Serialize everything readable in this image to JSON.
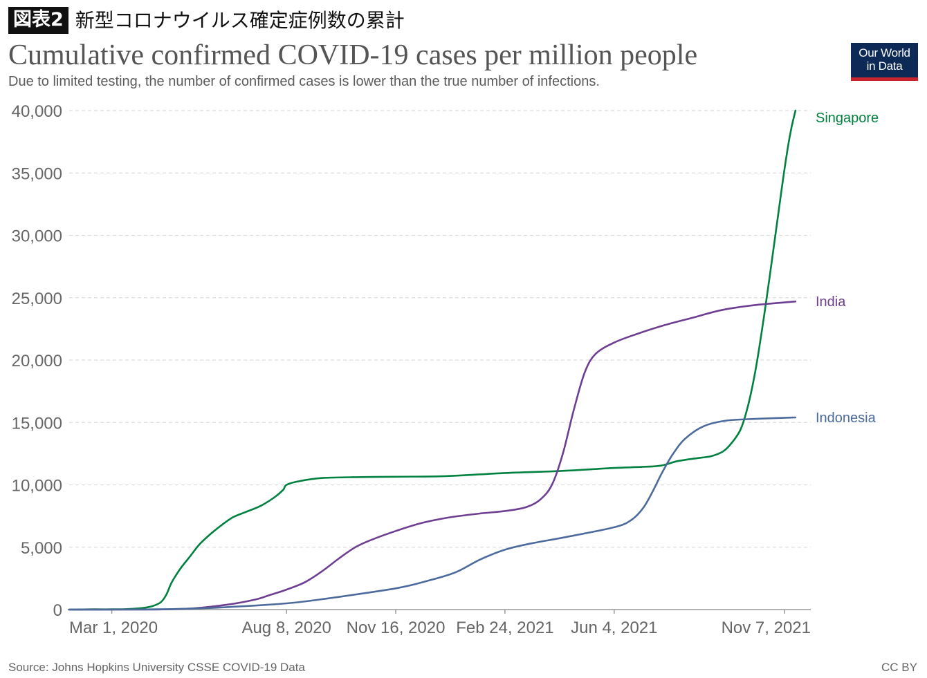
{
  "header": {
    "figure_label": "図表2",
    "figure_title": "新型コロナウイルス確定症例数の累計"
  },
  "logo": {
    "line1": "Our World",
    "line2": "in Data"
  },
  "footer": {
    "source": "Source: Johns Hopkins University CSSE COVID-19 Data",
    "license": "CC BY"
  },
  "chart_data": {
    "type": "line",
    "title": "Cumulative confirmed COVID-19 cases per million people",
    "subtitle": "Due to limited testing, the number of confirmed cases is lower than the true number of infections.",
    "xlabel": "",
    "ylabel": "",
    "x_range": [
      "2020-01-22",
      "2021-12-01"
    ],
    "ylim": [
      0,
      40000
    ],
    "y_ticks": [
      0,
      5000,
      10000,
      15000,
      20000,
      25000,
      30000,
      35000,
      40000
    ],
    "x_ticks": [
      {
        "date": "2020-03-01",
        "label": "Mar 1, 2020"
      },
      {
        "date": "2020-08-08",
        "label": "Aug 8, 2020"
      },
      {
        "date": "2020-11-16",
        "label": "Nov 16, 2020"
      },
      {
        "date": "2021-02-24",
        "label": "Feb 24, 2021"
      },
      {
        "date": "2021-06-04",
        "label": "Jun 4, 2021"
      },
      {
        "date": "2021-11-07",
        "label": "Nov 7, 2021"
      }
    ],
    "grid": "horizontal-dashed",
    "legend": "line-end labels",
    "series": [
      {
        "name": "Singapore",
        "color": "#00813f",
        "points": [
          [
            "2020-01-22",
            0
          ],
          [
            "2020-02-15",
            20
          ],
          [
            "2020-03-01",
            20
          ],
          [
            "2020-03-15",
            40
          ],
          [
            "2020-03-31",
            150
          ],
          [
            "2020-04-08",
            300
          ],
          [
            "2020-04-15",
            600
          ],
          [
            "2020-04-20",
            1200
          ],
          [
            "2020-04-25",
            2200
          ],
          [
            "2020-05-03",
            3300
          ],
          [
            "2020-05-12",
            4300
          ],
          [
            "2020-05-20",
            5200
          ],
          [
            "2020-05-31",
            6100
          ],
          [
            "2020-06-10",
            6800
          ],
          [
            "2020-06-20",
            7400
          ],
          [
            "2020-07-01",
            7800
          ],
          [
            "2020-07-15",
            8300
          ],
          [
            "2020-07-28",
            9000
          ],
          [
            "2020-08-05",
            9600
          ],
          [
            "2020-08-08",
            10000
          ],
          [
            "2020-08-20",
            10300
          ],
          [
            "2020-09-10",
            10550
          ],
          [
            "2020-10-15",
            10620
          ],
          [
            "2020-11-16",
            10650
          ],
          [
            "2021-01-01",
            10700
          ],
          [
            "2021-02-24",
            10950
          ],
          [
            "2021-04-15",
            11100
          ],
          [
            "2021-06-04",
            11350
          ],
          [
            "2021-07-10",
            11480
          ],
          [
            "2021-07-20",
            11600
          ],
          [
            "2021-08-01",
            11900
          ],
          [
            "2021-08-20",
            12150
          ],
          [
            "2021-09-01",
            12300
          ],
          [
            "2021-09-12",
            12700
          ],
          [
            "2021-09-20",
            13400
          ],
          [
            "2021-09-28",
            14500
          ],
          [
            "2021-10-05",
            16500
          ],
          [
            "2021-10-12",
            19500
          ],
          [
            "2021-10-20",
            24000
          ],
          [
            "2021-10-28",
            29000
          ],
          [
            "2021-11-04",
            33500
          ],
          [
            "2021-11-09",
            36500
          ],
          [
            "2021-11-13",
            38500
          ],
          [
            "2021-11-17",
            40000
          ]
        ]
      },
      {
        "name": "India",
        "color": "#6d3e91",
        "points": [
          [
            "2020-01-22",
            0
          ],
          [
            "2020-03-01",
            0
          ],
          [
            "2020-04-15",
            10
          ],
          [
            "2020-05-15",
            100
          ],
          [
            "2020-06-15",
            400
          ],
          [
            "2020-07-10",
            800
          ],
          [
            "2020-07-25",
            1200
          ],
          [
            "2020-08-08",
            1600
          ],
          [
            "2020-08-25",
            2200
          ],
          [
            "2020-09-10",
            3100
          ],
          [
            "2020-09-25",
            4100
          ],
          [
            "2020-10-10",
            5000
          ],
          [
            "2020-10-25",
            5600
          ],
          [
            "2020-11-16",
            6300
          ],
          [
            "2020-12-10",
            6950
          ],
          [
            "2021-01-05",
            7400
          ],
          [
            "2021-02-01",
            7700
          ],
          [
            "2021-02-24",
            7900
          ],
          [
            "2021-03-15",
            8200
          ],
          [
            "2021-03-28",
            8800
          ],
          [
            "2021-04-08",
            10000
          ],
          [
            "2021-04-18",
            12500
          ],
          [
            "2021-04-28",
            16000
          ],
          [
            "2021-05-08",
            19000
          ],
          [
            "2021-05-18",
            20500
          ],
          [
            "2021-06-04",
            21400
          ],
          [
            "2021-06-25",
            22100
          ],
          [
            "2021-07-20",
            22800
          ],
          [
            "2021-08-15",
            23400
          ],
          [
            "2021-09-10",
            24000
          ],
          [
            "2021-10-10",
            24400
          ],
          [
            "2021-11-17",
            24700
          ]
        ]
      },
      {
        "name": "Indonesia",
        "color": "#4c6a9c",
        "points": [
          [
            "2020-01-22",
            0
          ],
          [
            "2020-03-01",
            0
          ],
          [
            "2020-05-01",
            50
          ],
          [
            "2020-06-15",
            200
          ],
          [
            "2020-08-08",
            500
          ],
          [
            "2020-09-15",
            900
          ],
          [
            "2020-11-16",
            1700
          ],
          [
            "2020-12-15",
            2300
          ],
          [
            "2021-01-10",
            3000
          ],
          [
            "2021-02-01",
            4000
          ],
          [
            "2021-02-24",
            4800
          ],
          [
            "2021-03-20",
            5300
          ],
          [
            "2021-04-20",
            5800
          ],
          [
            "2021-06-04",
            6600
          ],
          [
            "2021-06-20",
            7200
          ],
          [
            "2021-07-01",
            8200
          ],
          [
            "2021-07-10",
            9600
          ],
          [
            "2021-07-18",
            11000
          ],
          [
            "2021-07-28",
            12500
          ],
          [
            "2021-08-08",
            13700
          ],
          [
            "2021-08-25",
            14700
          ],
          [
            "2021-09-15",
            15150
          ],
          [
            "2021-10-15",
            15300
          ],
          [
            "2021-11-17",
            15400
          ]
        ]
      }
    ]
  }
}
